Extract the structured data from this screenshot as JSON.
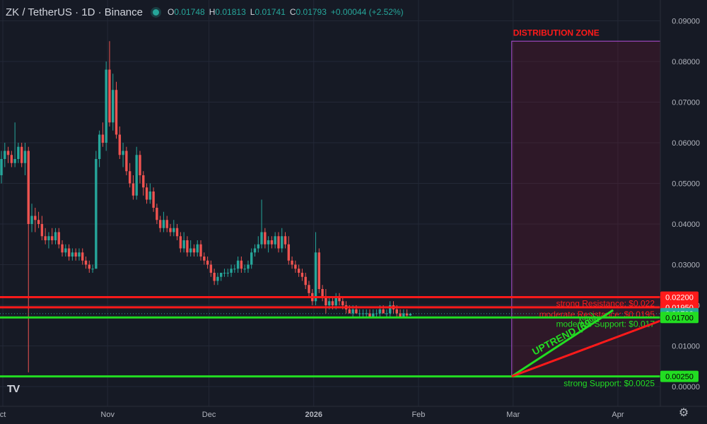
{
  "header": {
    "symbol": "ZK / TetherUS · 1D · Binance",
    "open_label": "O",
    "open": "0.01748",
    "high_label": "H",
    "high": "0.01813",
    "low_label": "L",
    "low": "0.01741",
    "close_label": "C",
    "close": "0.01793",
    "change": "+0.00044 (+2.52%)"
  },
  "colors": {
    "background": "#161a25",
    "up": "#26a69a",
    "down": "#ef5350",
    "resistance": "#ff1a1a",
    "support": "#22dd22",
    "zone": "#b04fd6",
    "zone_title": "#ff1a1a"
  },
  "icons": {
    "logo": "tradingview-logo-icon",
    "settings": "gear-icon"
  },
  "chart_data": {
    "type": "candlestick",
    "price_axis": {
      "ticks": [
        0.09,
        0.08,
        0.07,
        0.06,
        0.05,
        0.04,
        0.03,
        0.02,
        0.01,
        0.0
      ],
      "tick_labels": [
        "0.09000",
        "0.08000",
        "0.07000",
        "0.06000",
        "0.05000",
        "0.04000",
        "0.03000",
        "0.02000",
        "0.01000",
        "0.00000"
      ],
      "ylim": [
        -0.0005,
        0.092
      ]
    },
    "time_axis": {
      "labels": [
        {
          "text": "ct",
          "day": 0
        },
        {
          "text": "Nov",
          "day": 31
        },
        {
          "text": "Dec",
          "day": 61
        },
        {
          "text": "2026",
          "day": 92
        },
        {
          "text": "Feb",
          "day": 123
        },
        {
          "text": "Mar",
          "day": 151
        },
        {
          "text": "Apr",
          "day": 182
        }
      ]
    },
    "price_badges": [
      {
        "value": "0.02200",
        "price": 0.022,
        "color": "#ff1a1a"
      },
      {
        "value": "0.01950",
        "price": 0.0195,
        "color": "#ff1a1a"
      },
      {
        "value": "0.01793",
        "price": 0.01793,
        "color": "#26a69a"
      },
      {
        "value": "0.01700",
        "price": 0.017,
        "color": "#22dd22"
      },
      {
        "value": "0.00250",
        "price": 0.0025,
        "color": "#22dd22"
      }
    ],
    "levels": [
      {
        "price": 0.022,
        "color": "#ff1a1a",
        "label": "strong Resistance: $0.022"
      },
      {
        "price": 0.0195,
        "color": "#ff1a1a",
        "label": "moderate Resistance: $0.0195"
      },
      {
        "price": 0.017,
        "color": "#22dd22",
        "label": "moderate Support: $0.017"
      },
      {
        "price": 0.0025,
        "color": "#22dd22",
        "label": "strong Support: $0.0025"
      }
    ],
    "zone": {
      "title": "DISTRIBUTION ZONE",
      "day_start": 151,
      "day_end": 191,
      "price_top": 0.085,
      "price_bottom": 0.0025
    },
    "trend_lines": [
      {
        "from": [
          151,
          0.0025
        ],
        "to": [
          181,
          0.0188
        ],
        "color": "#22dd22"
      },
      {
        "from": [
          151,
          0.0025
        ],
        "to": [
          196,
          0.0165
        ],
        "color": "#ff1a1a"
      }
    ],
    "uptrend_label": "UPTREND (69%",
    "uptrend_sub": "4% )",
    "candles": [
      [
        0.052,
        0.058,
        0.05,
        0.056
      ],
      [
        0.056,
        0.06,
        0.054,
        0.058
      ],
      [
        0.058,
        0.059,
        0.055,
        0.057
      ],
      [
        0.057,
        0.058,
        0.054,
        0.055
      ],
      [
        0.055,
        0.065,
        0.054,
        0.056
      ],
      [
        0.056,
        0.06,
        0.055,
        0.059
      ],
      [
        0.059,
        0.06,
        0.054,
        0.055
      ],
      [
        0.055,
        0.06,
        0.052,
        0.058
      ],
      [
        0.058,
        0.059,
        0.0035,
        0.04
      ],
      [
        0.04,
        0.045,
        0.038,
        0.042
      ],
      [
        0.042,
        0.044,
        0.038,
        0.041
      ],
      [
        0.041,
        0.043,
        0.039,
        0.04
      ],
      [
        0.04,
        0.042,
        0.036,
        0.037
      ],
      [
        0.037,
        0.039,
        0.035,
        0.036
      ],
      [
        0.036,
        0.038,
        0.034,
        0.037
      ],
      [
        0.037,
        0.039,
        0.035,
        0.036
      ],
      [
        0.036,
        0.039,
        0.035,
        0.038
      ],
      [
        0.038,
        0.039,
        0.034,
        0.035
      ],
      [
        0.035,
        0.036,
        0.032,
        0.033
      ],
      [
        0.033,
        0.035,
        0.032,
        0.034
      ],
      [
        0.034,
        0.035,
        0.031,
        0.032
      ],
      [
        0.032,
        0.034,
        0.031,
        0.033
      ],
      [
        0.033,
        0.034,
        0.031,
        0.032
      ],
      [
        0.032,
        0.034,
        0.031,
        0.033
      ],
      [
        0.033,
        0.034,
        0.03,
        0.031
      ],
      [
        0.031,
        0.032,
        0.029,
        0.03
      ],
      [
        0.03,
        0.031,
        0.028,
        0.029
      ],
      [
        0.029,
        0.03,
        0.028,
        0.029
      ],
      [
        0.029,
        0.058,
        0.029,
        0.056
      ],
      [
        0.056,
        0.063,
        0.054,
        0.062
      ],
      [
        0.062,
        0.065,
        0.059,
        0.06
      ],
      [
        0.06,
        0.08,
        0.058,
        0.078
      ],
      [
        0.078,
        0.085,
        0.064,
        0.065
      ],
      [
        0.065,
        0.077,
        0.063,
        0.073
      ],
      [
        0.073,
        0.075,
        0.061,
        0.062
      ],
      [
        0.062,
        0.064,
        0.056,
        0.057
      ],
      [
        0.057,
        0.06,
        0.054,
        0.058
      ],
      [
        0.058,
        0.059,
        0.052,
        0.053
      ],
      [
        0.053,
        0.055,
        0.049,
        0.05
      ],
      [
        0.05,
        0.052,
        0.046,
        0.047
      ],
      [
        0.047,
        0.059,
        0.046,
        0.057
      ],
      [
        0.057,
        0.058,
        0.05,
        0.052
      ],
      [
        0.052,
        0.053,
        0.047,
        0.049
      ],
      [
        0.049,
        0.05,
        0.045,
        0.046
      ],
      [
        0.046,
        0.05,
        0.045,
        0.048
      ],
      [
        0.048,
        0.049,
        0.043,
        0.044
      ],
      [
        0.044,
        0.045,
        0.04,
        0.041
      ],
      [
        0.041,
        0.042,
        0.038,
        0.039
      ],
      [
        0.039,
        0.043,
        0.038,
        0.041
      ],
      [
        0.041,
        0.042,
        0.038,
        0.039
      ],
      [
        0.039,
        0.04,
        0.037,
        0.038
      ],
      [
        0.038,
        0.041,
        0.037,
        0.039
      ],
      [
        0.039,
        0.04,
        0.036,
        0.037
      ],
      [
        0.037,
        0.038,
        0.033,
        0.034
      ],
      [
        0.034,
        0.038,
        0.033,
        0.036
      ],
      [
        0.036,
        0.037,
        0.032,
        0.033
      ],
      [
        0.033,
        0.036,
        0.032,
        0.034
      ],
      [
        0.034,
        0.035,
        0.032,
        0.033
      ],
      [
        0.033,
        0.036,
        0.032,
        0.035
      ],
      [
        0.035,
        0.036,
        0.031,
        0.032
      ],
      [
        0.032,
        0.033,
        0.03,
        0.031
      ],
      [
        0.031,
        0.032,
        0.029,
        0.03
      ],
      [
        0.03,
        0.031,
        0.027,
        0.028
      ],
      [
        0.028,
        0.029,
        0.025,
        0.026
      ],
      [
        0.026,
        0.028,
        0.025,
        0.027
      ],
      [
        0.027,
        0.028,
        0.026,
        0.028
      ],
      [
        0.028,
        0.029,
        0.027,
        0.028
      ],
      [
        0.028,
        0.029,
        0.027,
        0.028
      ],
      [
        0.028,
        0.03,
        0.027,
        0.029
      ],
      [
        0.029,
        0.03,
        0.028,
        0.029
      ],
      [
        0.029,
        0.032,
        0.028,
        0.031
      ],
      [
        0.031,
        0.032,
        0.028,
        0.029
      ],
      [
        0.029,
        0.03,
        0.028,
        0.029
      ],
      [
        0.029,
        0.031,
        0.028,
        0.03
      ],
      [
        0.03,
        0.034,
        0.029,
        0.033
      ],
      [
        0.033,
        0.035,
        0.032,
        0.034
      ],
      [
        0.034,
        0.037,
        0.033,
        0.035
      ],
      [
        0.035,
        0.046,
        0.034,
        0.038
      ],
      [
        0.038,
        0.039,
        0.034,
        0.035
      ],
      [
        0.035,
        0.037,
        0.033,
        0.036
      ],
      [
        0.036,
        0.037,
        0.034,
        0.035
      ],
      [
        0.035,
        0.038,
        0.034,
        0.037
      ],
      [
        0.037,
        0.038,
        0.033,
        0.034
      ],
      [
        0.034,
        0.039,
        0.033,
        0.037
      ],
      [
        0.037,
        0.038,
        0.034,
        0.035
      ],
      [
        0.035,
        0.037,
        0.03,
        0.031
      ],
      [
        0.031,
        0.032,
        0.029,
        0.03
      ],
      [
        0.03,
        0.031,
        0.028,
        0.029
      ],
      [
        0.029,
        0.03,
        0.027,
        0.028
      ],
      [
        0.028,
        0.029,
        0.026,
        0.027
      ],
      [
        0.027,
        0.028,
        0.024,
        0.025
      ],
      [
        0.025,
        0.026,
        0.022,
        0.023
      ],
      [
        0.023,
        0.024,
        0.02,
        0.021
      ],
      [
        0.021,
        0.038,
        0.02,
        0.033
      ],
      [
        0.033,
        0.034,
        0.023,
        0.024
      ],
      [
        0.024,
        0.025,
        0.021,
        0.022
      ],
      [
        0.022,
        0.024,
        0.018,
        0.02
      ],
      [
        0.02,
        0.022,
        0.019,
        0.021
      ],
      [
        0.021,
        0.022,
        0.019,
        0.02
      ],
      [
        0.02,
        0.023,
        0.019,
        0.022
      ],
      [
        0.022,
        0.023,
        0.02,
        0.021
      ],
      [
        0.021,
        0.022,
        0.019,
        0.02
      ],
      [
        0.02,
        0.021,
        0.018,
        0.019
      ],
      [
        0.019,
        0.02,
        0.018,
        0.018
      ],
      [
        0.018,
        0.02,
        0.017,
        0.019
      ],
      [
        0.019,
        0.02,
        0.018,
        0.018
      ],
      [
        0.018,
        0.019,
        0.017,
        0.018
      ],
      [
        0.018,
        0.019,
        0.017,
        0.018
      ],
      [
        0.018,
        0.019,
        0.017,
        0.018
      ],
      [
        0.018,
        0.019,
        0.017,
        0.017
      ],
      [
        0.017,
        0.019,
        0.017,
        0.018
      ],
      [
        0.018,
        0.019,
        0.017,
        0.018
      ],
      [
        0.018,
        0.02,
        0.017,
        0.019
      ],
      [
        0.019,
        0.02,
        0.018,
        0.018
      ],
      [
        0.018,
        0.019,
        0.017,
        0.018
      ],
      [
        0.018,
        0.021,
        0.017,
        0.02
      ],
      [
        0.02,
        0.021,
        0.018,
        0.019
      ],
      [
        0.019,
        0.02,
        0.017,
        0.018
      ],
      [
        0.018,
        0.019,
        0.017,
        0.017
      ],
      [
        0.017,
        0.019,
        0.017,
        0.018
      ],
      [
        0.018,
        0.019,
        0.017,
        0.0175
      ],
      [
        0.0175,
        0.01813,
        0.01741,
        0.01793
      ]
    ]
  }
}
